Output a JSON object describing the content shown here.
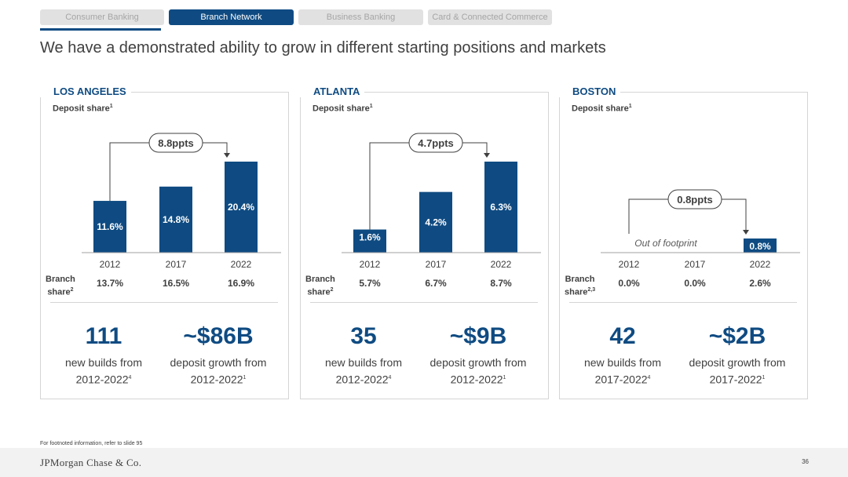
{
  "tabs": [
    {
      "label": "Consumer Banking",
      "active": false
    },
    {
      "label": "Branch Network",
      "active": true
    },
    {
      "label": "Business Banking",
      "active": false
    },
    {
      "label": "Card & Connected Commerce",
      "active": false
    }
  ],
  "title": "We have a demonstrated ability to grow in different starting positions and markets",
  "colors": {
    "bar": "#0f4b82",
    "accent": "#0f4b82",
    "text": "#404040"
  },
  "panels": [
    {
      "city": "LOS ANGELES",
      "deposit_label": "Deposit share",
      "deposit_sup": "1",
      "growth_label": "8.8ppts",
      "branch_label_line1": "Branch",
      "branch_label_line2": "share",
      "branch_sup": "2",
      "branch_share": [
        "13.7%",
        "16.5%",
        "16.9%"
      ],
      "metric1_value": "111",
      "metric1_line1": "new builds from",
      "metric1_line2": "2012-2022",
      "metric1_sup": "4",
      "metric2_value": "~$86B",
      "metric2_line1": "deposit growth from",
      "metric2_line2": "2012-2022",
      "metric2_sup": "1"
    },
    {
      "city": "ATLANTA",
      "deposit_label": "Deposit share",
      "deposit_sup": "1",
      "growth_label": "4.7ppts",
      "branch_label_line1": "Branch",
      "branch_label_line2": "share",
      "branch_sup": "2",
      "branch_share": [
        "5.7%",
        "6.7%",
        "8.7%"
      ],
      "metric1_value": "35",
      "metric1_line1": "new builds from",
      "metric1_line2": "2012-2022",
      "metric1_sup": "4",
      "metric2_value": "~$9B",
      "metric2_line1": "deposit growth from",
      "metric2_line2": "2012-2022",
      "metric2_sup": "1"
    },
    {
      "city": "BOSTON",
      "deposit_label": "Deposit share",
      "deposit_sup": "1",
      "growth_label": "0.8ppts",
      "footprint_note": "Out of footprint",
      "branch_label_line1": "Branch",
      "branch_label_line2": "share",
      "branch_sup": "2,3",
      "branch_share": [
        "0.0%",
        "0.0%",
        "2.6%"
      ],
      "metric1_value": "42",
      "metric1_line1": "new builds from",
      "metric1_line2": "2017-2022",
      "metric1_sup": "4",
      "metric2_value": "~$2B",
      "metric2_line1": "deposit growth from",
      "metric2_line2": "2017-2022",
      "metric2_sup": "1"
    }
  ],
  "chart_data": [
    {
      "type": "bar",
      "title": "LOS ANGELES",
      "ylabel": "Deposit share",
      "categories": [
        "2012",
        "2017",
        "2022"
      ],
      "values": [
        11.6,
        14.8,
        20.4
      ],
      "labels": [
        "11.6%",
        "14.8%",
        "20.4%"
      ],
      "ylim": [
        0,
        20.4
      ]
    },
    {
      "type": "bar",
      "title": "ATLANTA",
      "ylabel": "Deposit share",
      "categories": [
        "2012",
        "2017",
        "2022"
      ],
      "values": [
        1.6,
        4.2,
        6.3
      ],
      "labels": [
        "1.6%",
        "4.2%",
        "6.3%"
      ],
      "ylim": [
        0,
        6.3
      ]
    },
    {
      "type": "bar",
      "title": "BOSTON",
      "ylabel": "Deposit share",
      "categories": [
        "2012",
        "2017",
        "2022"
      ],
      "values": [
        null,
        null,
        0.8
      ],
      "labels": [
        "",
        "",
        "0.8%"
      ],
      "ylim": [
        0,
        6.3
      ]
    }
  ],
  "footnote": "For footnoted information, refer to slide 95",
  "footer": {
    "logo": "JPMorgan Chase & Co.",
    "page_number": "36"
  }
}
